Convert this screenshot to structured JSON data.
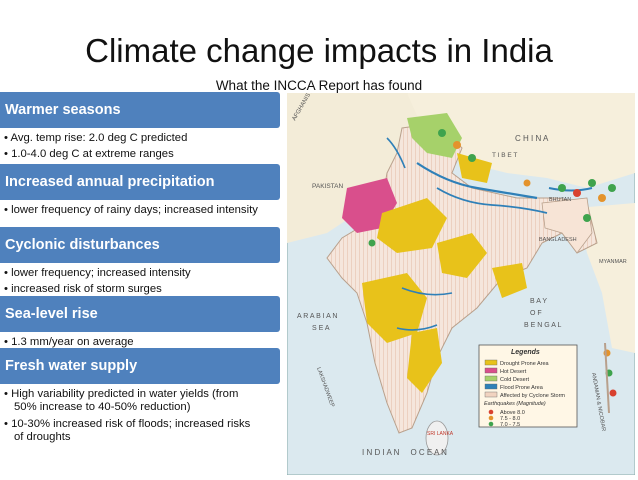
{
  "title": "Climate change impacts in India",
  "subtitle": "What the INCCA Report has found",
  "sections": [
    {
      "heading": "Warmer seasons",
      "bullets": [
        "Avg. temp rise: 2.0 deg C predicted",
        "1.0-4.0 deg C at extreme ranges"
      ]
    },
    {
      "heading": "Increased annual precipitation",
      "bullets": [
        "lower frequency of rainy days; increased intensity"
      ]
    },
    {
      "heading": "Cyclonic disturbances",
      "bullets": [
        "lower frequency; increased intensity",
        "increased risk of storm surges"
      ]
    },
    {
      "heading": "Sea-level rise",
      "bullets": [
        "1.3 mm/year on average"
      ]
    },
    {
      "heading": "Fresh water supply",
      "bullets": [
        "High variability predicted in water yields (from 50% increase to 40-50% reduction)",
        "10-30% increased risk of floods; increased risks of droughts"
      ]
    }
  ],
  "map": {
    "labels": {
      "afghanistan": "AFGHANISTAN",
      "pakistan": "PAKISTAN",
      "china": "C H I N A",
      "tibet": "T I B E T",
      "bhutan": "BHUTAN",
      "bangladesh": "BANGLADESH",
      "myanmar": "MYANMAR",
      "bay": "B A Y",
      "of": "O F",
      "bengal": "B E N G A L",
      "arabian": "A R A B I A N",
      "sea": "S E A",
      "lakshadweep": "LAKSHADWEEP",
      "srilanka": "SRI LANKA",
      "indian_ocean": "I N D I A N     O C E A N",
      "andaman": "ANDAMAN & NICOBAR"
    },
    "legend": {
      "title": "Legends",
      "items": [
        {
          "label": "Drought Prone Area",
          "color": "#e8c21a"
        },
        {
          "label": "Hot Desert",
          "color": "#d94f8c"
        },
        {
          "label": "Cold Desert",
          "color": "#a6d16a"
        },
        {
          "label": "Flood Prone Area",
          "color": "#2f80b8"
        },
        {
          "label": "Affected by Cyclone Storm",
          "color": "#f1d3c0"
        }
      ],
      "quake_title": "Earthquakes (Magnitude)",
      "quakes": [
        {
          "label": "Above 8.0",
          "color": "#d8412f"
        },
        {
          "label": "7.5 - 8.0",
          "color": "#e4932c"
        },
        {
          "label": "7.0 - 7.5",
          "color": "#3fa34d"
        }
      ]
    }
  }
}
